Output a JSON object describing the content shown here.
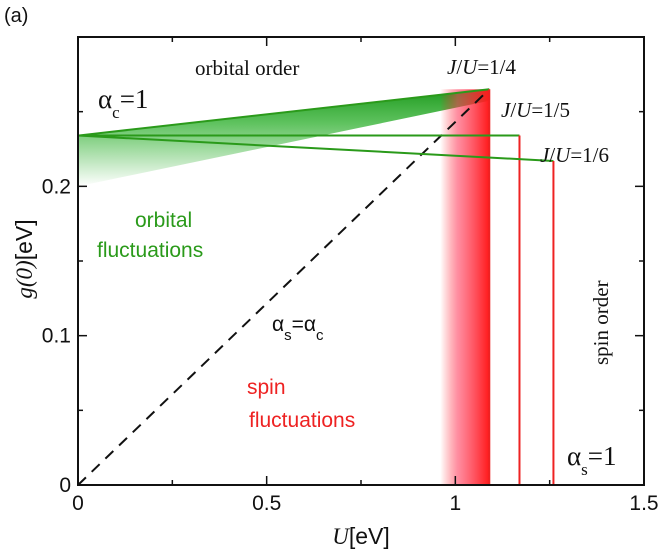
{
  "panel_label": "(a)",
  "chart_data": {
    "type": "phase_diagram",
    "xlabel_var": "U",
    "xlabel_unit": "[eV]",
    "ylabel_var": "g(0)",
    "ylabel_unit": "[eV]",
    "xlim": [
      0,
      1.5
    ],
    "ylim": [
      0,
      0.3
    ],
    "x_major_ticks": [
      0,
      0.5,
      1,
      1.5
    ],
    "x_tick_labels": [
      "0",
      "0.5",
      "1",
      "1.5"
    ],
    "x_minor_ticks": [
      0.25,
      0.75,
      1.25
    ],
    "y_major_ticks": [
      0,
      0.1,
      0.2
    ],
    "y_tick_labels": [
      "0",
      "0.1",
      "0.2"
    ],
    "y_minor_ticks": [
      0.05,
      0.15,
      0.25
    ],
    "orbital_boundary_start": [
      0,
      0.234
    ],
    "boundaries": [
      {
        "name": "J/U=1/4",
        "label": "J/U=1/4",
        "end_x": 1.09,
        "end_y": 0.265
      },
      {
        "name": "J/U=1/5",
        "label": "J/U=1/5",
        "end_x": 1.17,
        "end_y": 0.234
      },
      {
        "name": "J/U=1/6",
        "label": "J/U=1/6",
        "end_x": 1.26,
        "end_y": 0.217
      }
    ],
    "diagonal": {
      "label_parts": [
        "α",
        "s",
        "=α",
        "c"
      ],
      "from": [
        0,
        0
      ],
      "to": [
        1.09,
        0.265
      ],
      "style": "dashed"
    },
    "orbital_gradient": {
      "green_color": "#1f9a1f",
      "top_left": [
        0,
        0.234
      ],
      "top_right": [
        1.09,
        0.265
      ],
      "fade_bottom_left": [
        0,
        0.2
      ],
      "fade_bottom_right": [
        1.09,
        0.26
      ]
    },
    "spin_gradient": {
      "red_color": "#ff1a1a",
      "fade_left_x": 0.96,
      "solid_right_x": 1.09
    },
    "annotations": {
      "orbital_order": "orbital order",
      "alpha_c": [
        "α",
        "c",
        "=1"
      ],
      "orbital_fluctuations": [
        "orbital",
        "fluctuations"
      ],
      "spin_fluctuations": [
        "spin",
        "fluctuations"
      ],
      "spin_order": "spin order",
      "alpha_s": [
        "α",
        "s",
        "=1"
      ]
    }
  }
}
